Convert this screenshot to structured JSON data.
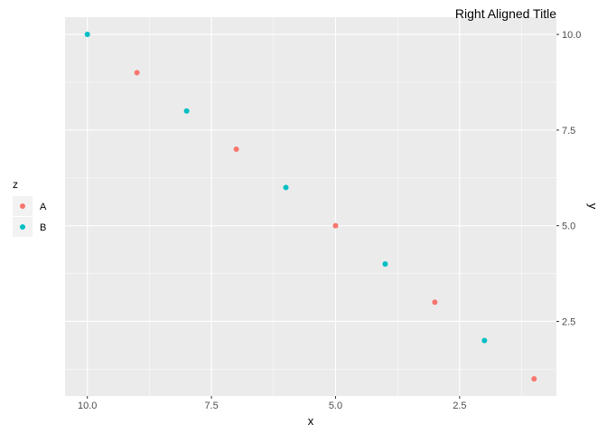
{
  "chart_data": {
    "type": "scatter",
    "title": "Right Aligned Title",
    "xlabel": "x",
    "ylabel": "y",
    "x_reversed": true,
    "y_axis_position": "right",
    "xlim": [
      0.55,
      10.45
    ],
    "ylim": [
      0.55,
      10.45
    ],
    "x_ticks": [
      10.0,
      7.5,
      5.0,
      2.5
    ],
    "x_tick_labels": [
      "10.0",
      "7.5",
      "5.0",
      "2.5"
    ],
    "y_ticks": [
      10.0,
      7.5,
      5.0,
      2.5
    ],
    "y_tick_labels": [
      "10.0",
      "7.5",
      "5.0",
      "2.5"
    ],
    "grid": true,
    "legend": {
      "title": "z",
      "position": "left",
      "entries": [
        {
          "label": "A",
          "color": "#F8766D"
        },
        {
          "label": "B",
          "color": "#00BFC4"
        }
      ]
    },
    "series": [
      {
        "name": "A",
        "color": "#F8766D",
        "points": [
          [
            9,
            9
          ],
          [
            7,
            7
          ],
          [
            5,
            5
          ],
          [
            3,
            3
          ],
          [
            1,
            1
          ]
        ]
      },
      {
        "name": "B",
        "color": "#00BFC4",
        "points": [
          [
            10,
            10
          ],
          [
            8,
            8
          ],
          [
            6,
            6
          ],
          [
            4,
            4
          ],
          [
            2,
            2
          ]
        ]
      }
    ]
  }
}
